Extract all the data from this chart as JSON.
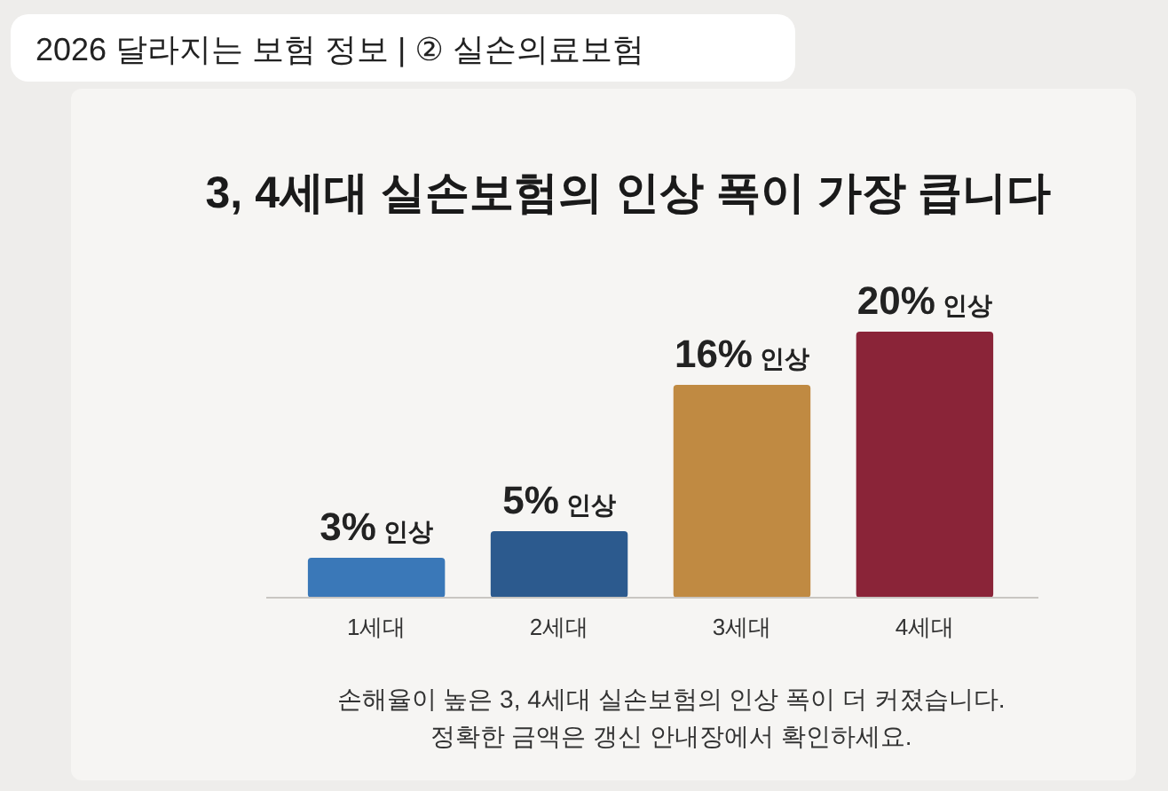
{
  "chart_data": {
    "type": "bar",
    "title": "3, 4세대 실손보험의 인상 폭이 가장 큽니다",
    "subtitle": "2026 달라지는 보험 정보 | ② 실손의료보험",
    "categories": [
      "1세대",
      "2세대",
      "3세대",
      "4세대"
    ],
    "values": [
      3,
      5,
      16,
      20
    ],
    "colors": [
      "#3a78b8",
      "#2c5a8e",
      "#c08a42",
      "#8a2438"
    ],
    "value_labels": [
      "3% 인상",
      "5% 인상",
      "16% 인상",
      "20% 인상"
    ],
    "annotations": [
      "손해율이 높은 3, 4세대 실손보험의 인상 폭이 더 커졌습니다.",
      "정확한 금액은 갱신 안내장에서 확인하세요."
    ]
  }
}
